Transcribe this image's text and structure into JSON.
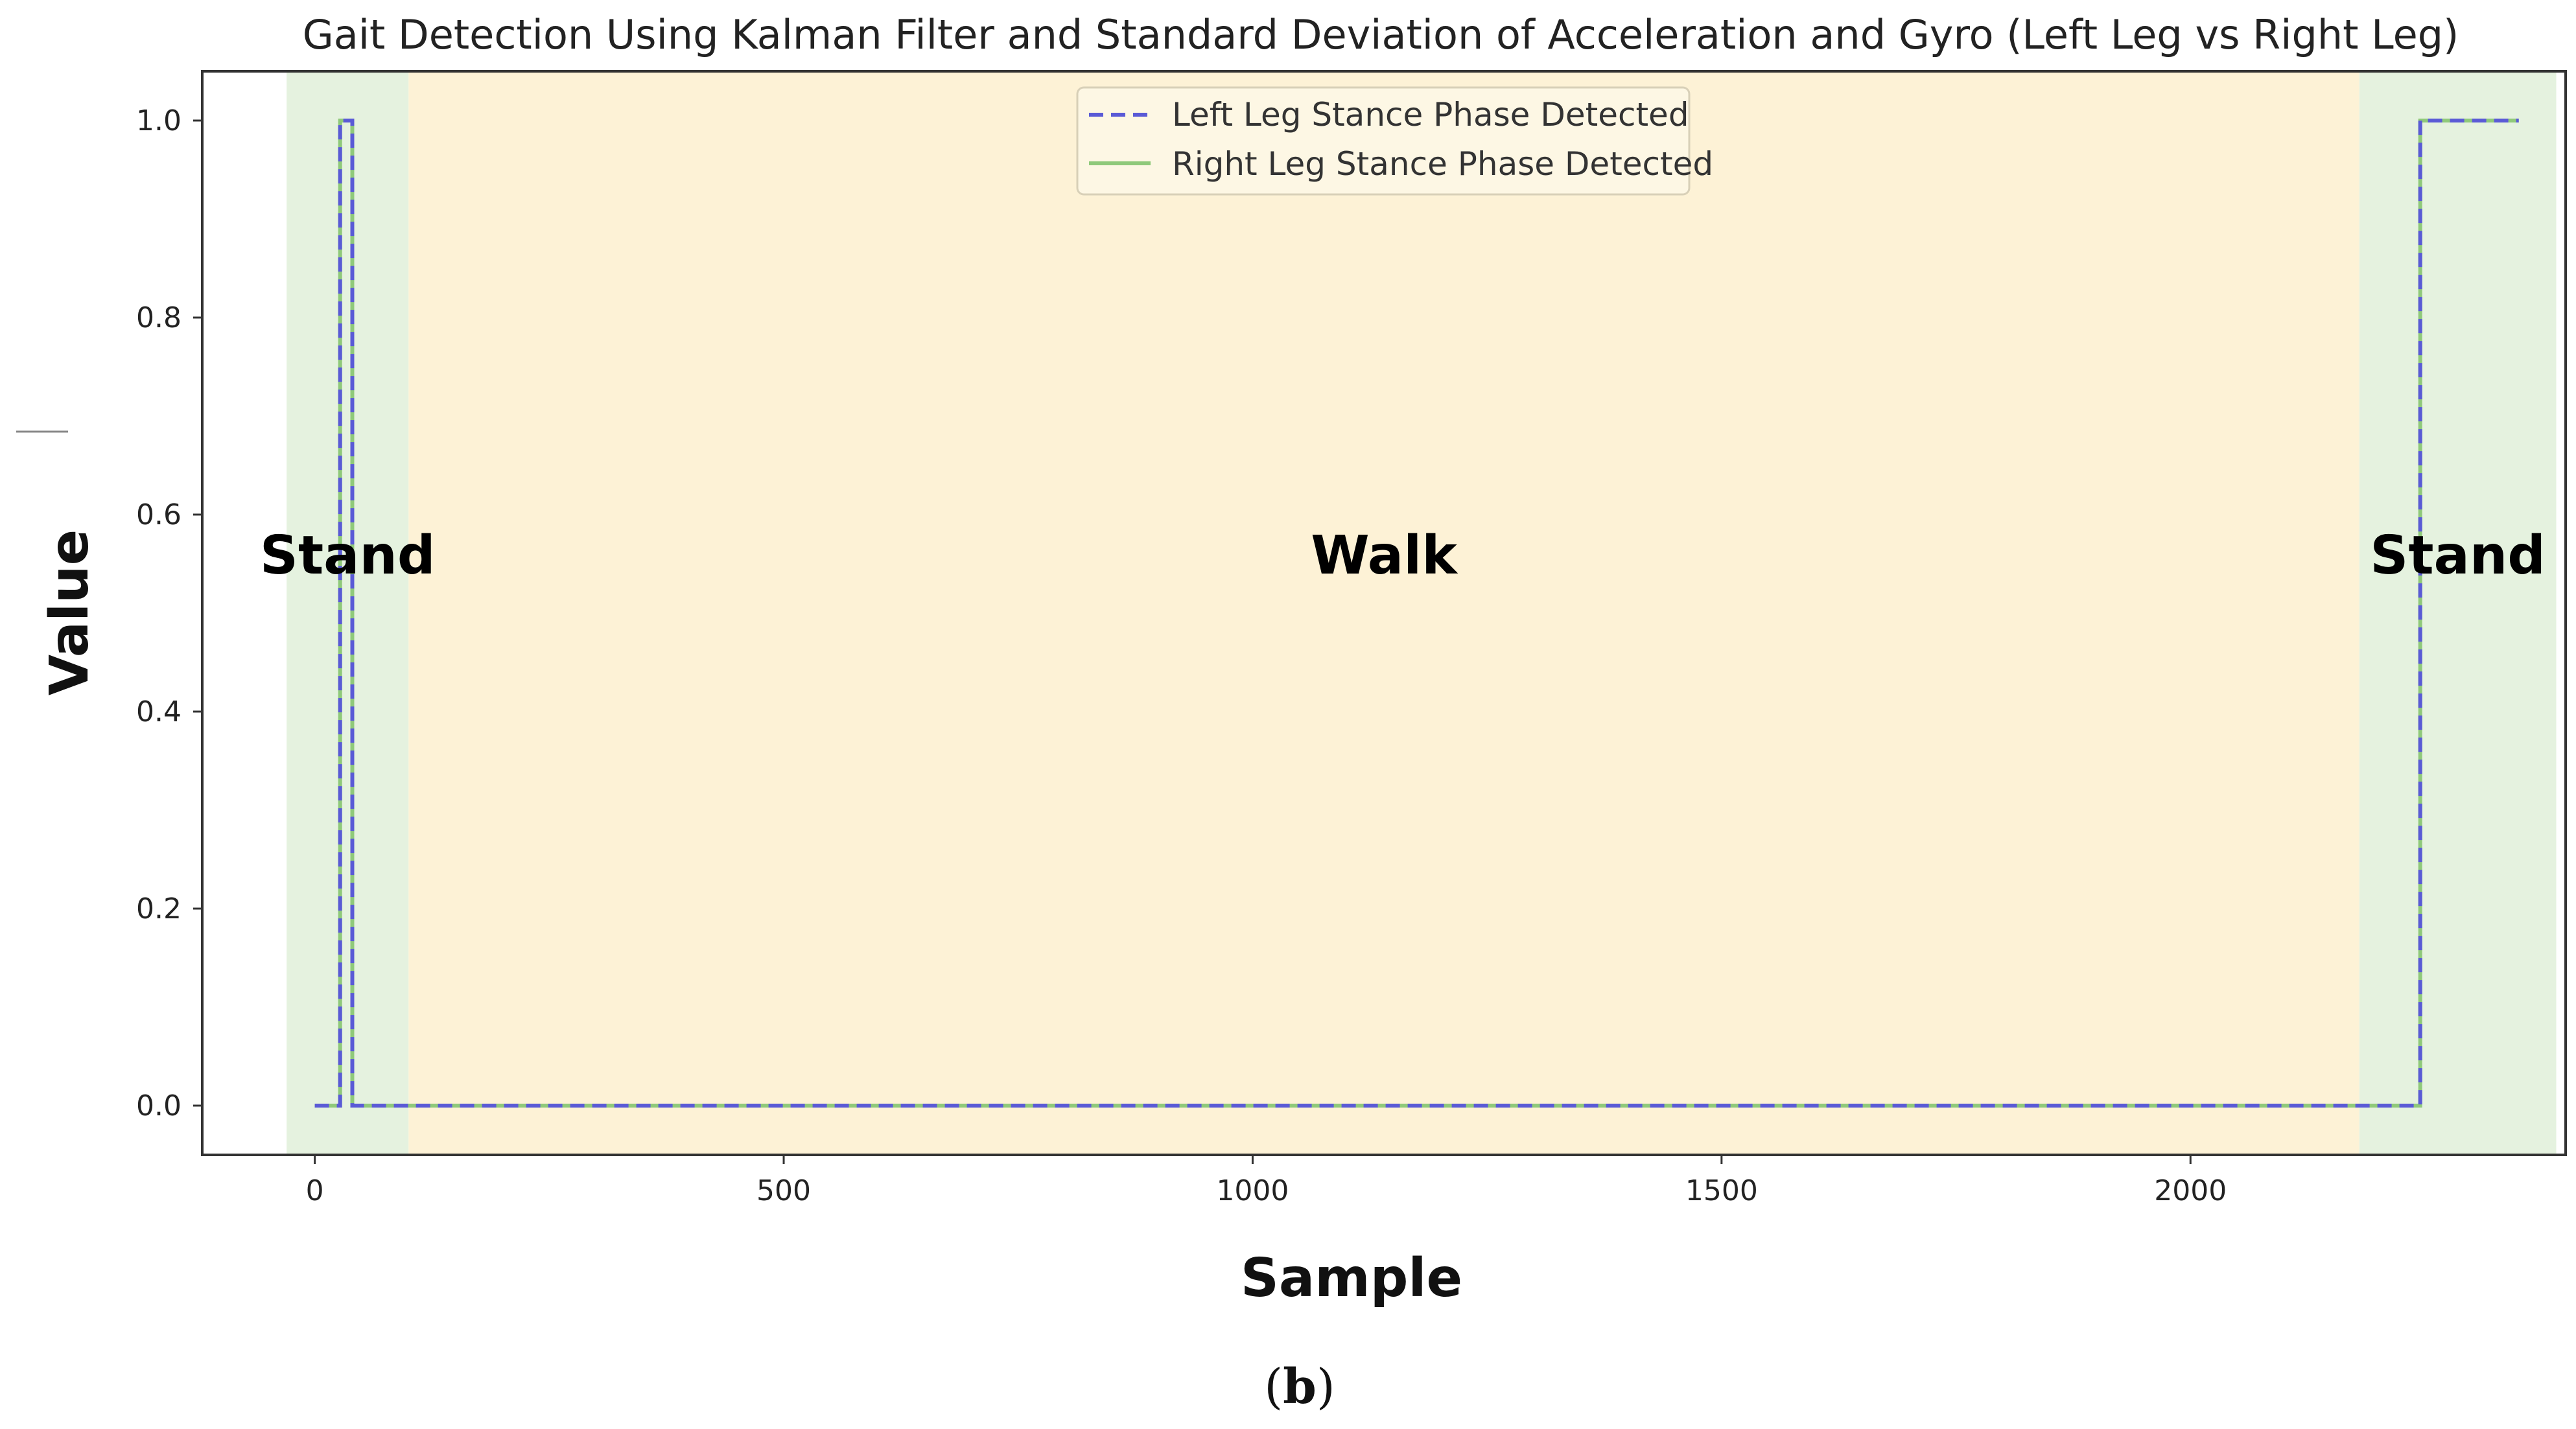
{
  "chart_data": {
    "type": "line",
    "title": "Gait Detection Using Kalman Filter and Standard Deviation of Acceleration and Gyro (Left Leg vs Right Leg)",
    "xlabel": "Sample",
    "ylabel": "Value",
    "xlim": [
      -120,
      2400
    ],
    "ylim": [
      -0.05,
      1.05
    ],
    "x_ticks": [
      0,
      500,
      1000,
      1500,
      2000
    ],
    "y_ticks": [
      0.0,
      0.2,
      0.4,
      0.6,
      0.8,
      1.0
    ],
    "x_tick_labels": [
      "0",
      "500",
      "1000",
      "1500",
      "2000"
    ],
    "y_tick_labels": [
      "0.0",
      "0.2",
      "0.4",
      "0.6",
      "0.8",
      "1.0"
    ],
    "grid": false,
    "legend_position": "top-center",
    "regions": [
      {
        "label": "Stand",
        "x_start": -30,
        "x_end": 100,
        "color": "#e5f2df"
      },
      {
        "label": "Walk",
        "x_start": 100,
        "x_end": 2180,
        "color": "#fdf2d6"
      },
      {
        "label": "Stand",
        "x_start": 2180,
        "x_end": 2390,
        "color": "#e5f2df"
      }
    ],
    "series": [
      {
        "name": "Left Leg Stance Phase Detected",
        "color": "#5a5ad6",
        "style": "dashed",
        "x": [
          0,
          27,
          27,
          40,
          40,
          2245,
          2245,
          2350
        ],
        "y": [
          0,
          0,
          1,
          1,
          0,
          0,
          1,
          1
        ]
      },
      {
        "name": "Right Leg Stance Phase Detected",
        "color": "#8fc97a",
        "style": "solid",
        "x": [
          0,
          27,
          27,
          40,
          40,
          2245,
          2245,
          2350
        ],
        "y": [
          0,
          0,
          1,
          1,
          0,
          0,
          1,
          1
        ]
      }
    ]
  },
  "caption": {
    "open": "(",
    "letter": "b",
    "close": ")"
  }
}
